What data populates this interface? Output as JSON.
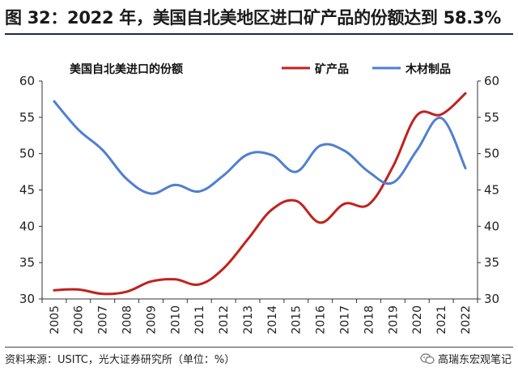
{
  "figure_title": "图 32：2022 年，美国自北美地区进口矿产品的份额达到 58.3%",
  "source_note": "资料来源：USITC，光大证券研究所（单位：%）",
  "brand": {
    "text": "高瑞东宏观笔记",
    "icon": "wechat-icon"
  },
  "colors": {
    "mineral": "#c0221c",
    "wood": "#4f7fd0",
    "axis": "#333333",
    "title_rule": "#1f2a44"
  },
  "chart_data": {
    "type": "line",
    "title": "美国自北美进口的份额",
    "categories": [
      "2005",
      "2006",
      "2007",
      "2008",
      "2009",
      "2010",
      "2011",
      "2012",
      "2013",
      "2014",
      "2015",
      "2016",
      "2017",
      "2018",
      "2019",
      "2020",
      "2021",
      "2022"
    ],
    "series": [
      {
        "name": "矿产品",
        "axis": "left",
        "values": [
          31.2,
          31.3,
          30.7,
          31.0,
          32.4,
          32.7,
          32.0,
          34.2,
          38.2,
          42.3,
          43.5,
          40.5,
          43.1,
          43.0,
          48.2,
          55.3,
          55.4,
          58.3
        ]
      },
      {
        "name": "木材制品",
        "axis": "right",
        "values": [
          57.2,
          53.3,
          50.5,
          46.5,
          44.5,
          45.7,
          44.8,
          47.0,
          49.9,
          49.8,
          47.5,
          51.1,
          50.4,
          47.5,
          46.0,
          50.5,
          54.9,
          48.0
        ]
      }
    ],
    "ylim": [
      30,
      60
    ],
    "yticks": [
      "30",
      "35",
      "40",
      "45",
      "50",
      "55",
      "60"
    ],
    "y2lim": [
      30,
      60
    ],
    "y2ticks": [
      "30",
      "35",
      "40",
      "45",
      "50",
      "55",
      "60"
    ],
    "grid": false,
    "legend_position": "top-right"
  }
}
